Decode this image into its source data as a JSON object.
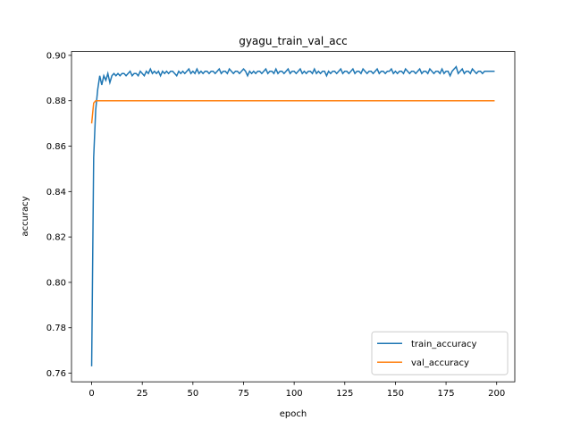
{
  "chart_data": {
    "type": "line",
    "title": "gyagu_train_val_acc",
    "xlabel": "epoch",
    "ylabel": "accuracy",
    "x": [
      0,
      1,
      2,
      3,
      4,
      5,
      6,
      7,
      8,
      9,
      10,
      11,
      12,
      13,
      14,
      15,
      16,
      17,
      18,
      19,
      20,
      21,
      22,
      23,
      24,
      25,
      26,
      27,
      28,
      29,
      30,
      31,
      32,
      33,
      34,
      35,
      36,
      37,
      38,
      39,
      40,
      41,
      42,
      43,
      44,
      45,
      46,
      47,
      48,
      49,
      50,
      51,
      52,
      53,
      54,
      55,
      56,
      57,
      58,
      59,
      60,
      61,
      62,
      63,
      64,
      65,
      66,
      67,
      68,
      69,
      70,
      71,
      72,
      73,
      74,
      75,
      76,
      77,
      78,
      79,
      80,
      81,
      82,
      83,
      84,
      85,
      86,
      87,
      88,
      89,
      90,
      91,
      92,
      93,
      94,
      95,
      96,
      97,
      98,
      99,
      100,
      101,
      102,
      103,
      104,
      105,
      106,
      107,
      108,
      109,
      110,
      111,
      112,
      113,
      114,
      115,
      116,
      117,
      118,
      119,
      120,
      121,
      122,
      123,
      124,
      125,
      126,
      127,
      128,
      129,
      130,
      131,
      132,
      133,
      134,
      135,
      136,
      137,
      138,
      139,
      140,
      141,
      142,
      143,
      144,
      145,
      146,
      147,
      148,
      149,
      150,
      151,
      152,
      153,
      154,
      155,
      156,
      157,
      158,
      159,
      160,
      161,
      162,
      163,
      164,
      165,
      166,
      167,
      168,
      169,
      170,
      171,
      172,
      173,
      174,
      175,
      176,
      177,
      178,
      179,
      180,
      181,
      182,
      183,
      184,
      185,
      186,
      187,
      188,
      189,
      190,
      191,
      192,
      193,
      194,
      195,
      196,
      197,
      198,
      199
    ],
    "series": [
      {
        "name": "train_accuracy",
        "color": "#1f77b4",
        "values": [
          0.763,
          0.855,
          0.876,
          0.885,
          0.891,
          0.887,
          0.891,
          0.889,
          0.892,
          0.888,
          0.891,
          0.892,
          0.891,
          0.892,
          0.891,
          0.892,
          0.892,
          0.891,
          0.892,
          0.893,
          0.891,
          0.892,
          0.892,
          0.891,
          0.893,
          0.892,
          0.891,
          0.893,
          0.892,
          0.894,
          0.892,
          0.893,
          0.892,
          0.893,
          0.891,
          0.893,
          0.892,
          0.893,
          0.892,
          0.893,
          0.893,
          0.892,
          0.891,
          0.893,
          0.892,
          0.893,
          0.892,
          0.893,
          0.894,
          0.892,
          0.893,
          0.892,
          0.894,
          0.892,
          0.893,
          0.892,
          0.893,
          0.893,
          0.892,
          0.893,
          0.893,
          0.892,
          0.893,
          0.894,
          0.892,
          0.893,
          0.893,
          0.892,
          0.894,
          0.893,
          0.892,
          0.893,
          0.893,
          0.892,
          0.893,
          0.894,
          0.893,
          0.891,
          0.893,
          0.892,
          0.893,
          0.892,
          0.893,
          0.893,
          0.892,
          0.893,
          0.894,
          0.892,
          0.893,
          0.893,
          0.892,
          0.894,
          0.892,
          0.893,
          0.893,
          0.892,
          0.893,
          0.894,
          0.892,
          0.893,
          0.893,
          0.892,
          0.893,
          0.894,
          0.892,
          0.893,
          0.892,
          0.893,
          0.893,
          0.892,
          0.894,
          0.892,
          0.893,
          0.892,
          0.893,
          0.893,
          0.891,
          0.893,
          0.892,
          0.893,
          0.893,
          0.892,
          0.893,
          0.894,
          0.892,
          0.893,
          0.893,
          0.892,
          0.893,
          0.894,
          0.892,
          0.893,
          0.893,
          0.892,
          0.894,
          0.893,
          0.892,
          0.893,
          0.893,
          0.892,
          0.893,
          0.894,
          0.892,
          0.893,
          0.893,
          0.892,
          0.893,
          0.893,
          0.894,
          0.892,
          0.893,
          0.892,
          0.893,
          0.893,
          0.892,
          0.894,
          0.893,
          0.892,
          0.893,
          0.893,
          0.892,
          0.893,
          0.894,
          0.892,
          0.893,
          0.893,
          0.892,
          0.894,
          0.893,
          0.892,
          0.893,
          0.893,
          0.892,
          0.894,
          0.892,
          0.893,
          0.893,
          0.891,
          0.893,
          0.894,
          0.895,
          0.892,
          0.893,
          0.894,
          0.892,
          0.893,
          0.893,
          0.892,
          0.894,
          0.893,
          0.892,
          0.893,
          0.893,
          0.892,
          0.893,
          0.893,
          0.893,
          0.893,
          0.893,
          0.893
        ]
      },
      {
        "name": "val_accuracy",
        "color": "#ff7f0e",
        "values": [
          0.87,
          0.879,
          0.88,
          0.88,
          0.88,
          0.88,
          0.88,
          0.88,
          0.88,
          0.88,
          0.88,
          0.88,
          0.88,
          0.88,
          0.88,
          0.88,
          0.88,
          0.88,
          0.88,
          0.88,
          0.88,
          0.88,
          0.88,
          0.88,
          0.88,
          0.88,
          0.88,
          0.88,
          0.88,
          0.88,
          0.88,
          0.88,
          0.88,
          0.88,
          0.88,
          0.88,
          0.88,
          0.88,
          0.88,
          0.88,
          0.88,
          0.88,
          0.88,
          0.88,
          0.88,
          0.88,
          0.88,
          0.88,
          0.88,
          0.88,
          0.88,
          0.88,
          0.88,
          0.88,
          0.88,
          0.88,
          0.88,
          0.88,
          0.88,
          0.88,
          0.88,
          0.88,
          0.88,
          0.88,
          0.88,
          0.88,
          0.88,
          0.88,
          0.88,
          0.88,
          0.88,
          0.88,
          0.88,
          0.88,
          0.88,
          0.88,
          0.88,
          0.88,
          0.88,
          0.88,
          0.88,
          0.88,
          0.88,
          0.88,
          0.88,
          0.88,
          0.88,
          0.88,
          0.88,
          0.88,
          0.88,
          0.88,
          0.88,
          0.88,
          0.88,
          0.88,
          0.88,
          0.88,
          0.88,
          0.88,
          0.88,
          0.88,
          0.88,
          0.88,
          0.88,
          0.88,
          0.88,
          0.88,
          0.88,
          0.88,
          0.88,
          0.88,
          0.88,
          0.88,
          0.88,
          0.88,
          0.88,
          0.88,
          0.88,
          0.88,
          0.88,
          0.88,
          0.88,
          0.88,
          0.88,
          0.88,
          0.88,
          0.88,
          0.88,
          0.88,
          0.88,
          0.88,
          0.88,
          0.88,
          0.88,
          0.88,
          0.88,
          0.88,
          0.88,
          0.88,
          0.88,
          0.88,
          0.88,
          0.88,
          0.88,
          0.88,
          0.88,
          0.88,
          0.88,
          0.88,
          0.88,
          0.88,
          0.88,
          0.88,
          0.88,
          0.88,
          0.88,
          0.88,
          0.88,
          0.88,
          0.88,
          0.88,
          0.88,
          0.88,
          0.88,
          0.88,
          0.88,
          0.88,
          0.88,
          0.88,
          0.88,
          0.88,
          0.88,
          0.88,
          0.88,
          0.88,
          0.88,
          0.88,
          0.88,
          0.88,
          0.88,
          0.88,
          0.88,
          0.88,
          0.88,
          0.88,
          0.88,
          0.88,
          0.88,
          0.88,
          0.88,
          0.88,
          0.88,
          0.88,
          0.88,
          0.88,
          0.88,
          0.88,
          0.88,
          0.88
        ]
      }
    ],
    "xlim": [
      -9.95,
      208.95
    ],
    "xticks": [
      0,
      25,
      50,
      75,
      100,
      125,
      150,
      175,
      200
    ],
    "ylim": [
      0.7562,
      0.9017
    ],
    "yticks": [
      0.76,
      0.78,
      {
        "value": 0.8,
        "label": "0.80"
      },
      0.82,
      0.84,
      0.86,
      0.88,
      {
        "value": 0.9,
        "label": "0.90"
      }
    ],
    "grid": false,
    "legend": "lower right"
  }
}
